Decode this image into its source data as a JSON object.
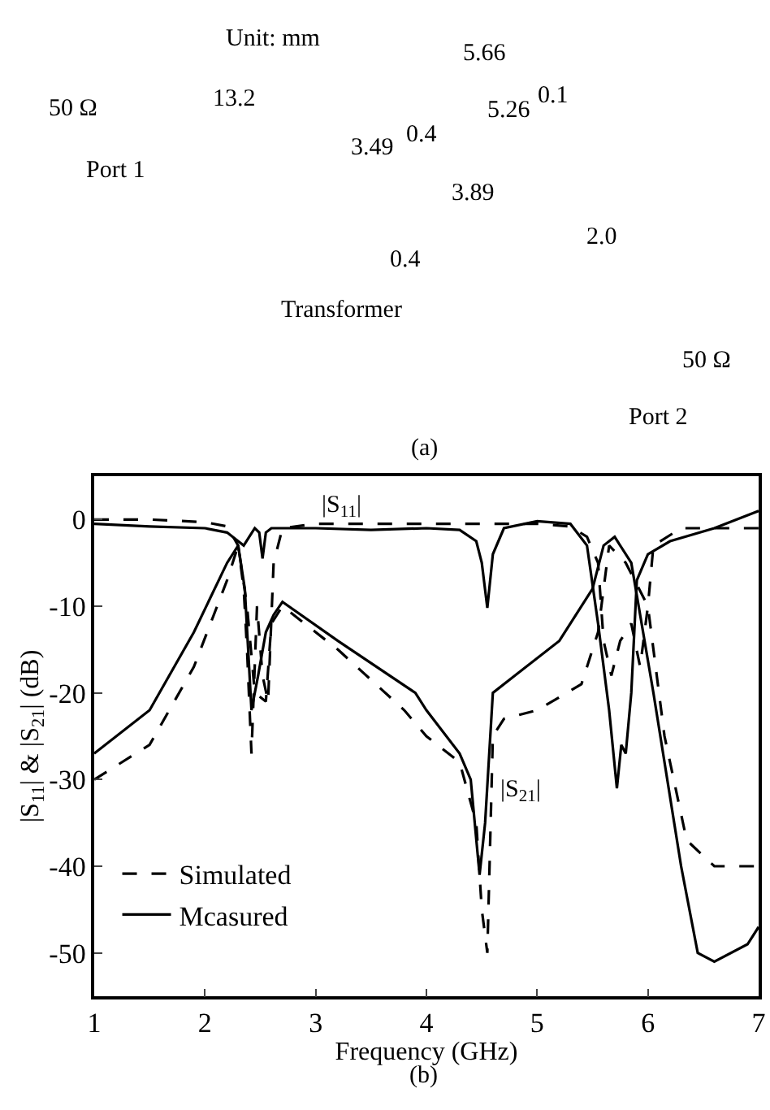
{
  "chart_data": [
    {
      "type": "other",
      "annotations": [
        "Unit: mm",
        "50 Ω",
        "13.2",
        "Port 1",
        "5.66",
        "5.26",
        "0.1",
        "3.49",
        "0.4",
        "3.89",
        "2.0",
        "0.4",
        "Transformer",
        "50 Ω",
        "Port 2",
        "(a)"
      ]
    },
    {
      "type": "line",
      "xlabel": "Frequency (GHz)",
      "ylabel": "|S$_{11}$| & |S$_{21}$| (dB)",
      "xlim": [
        1,
        7
      ],
      "xticks": [
        1,
        2,
        3,
        4,
        5,
        6,
        7
      ],
      "ylim": [
        -55,
        5
      ],
      "yticks": [
        -50,
        -40,
        -30,
        -20,
        -10,
        0
      ],
      "grid": false,
      "legend": "bottom left",
      "annotations": [
        "|S$_{11}$|",
        "|S$_{21}$|",
        "(b)"
      ],
      "series": [
        {
          "name": "Simulated",
          "color": "#000000",
          "line_style": "dashed",
          "x": [
            1,
            1.5,
            2.0,
            2.2,
            2.3,
            2.35,
            2.38,
            2.42,
            2.47,
            2.52,
            2.57,
            2.62,
            2.7,
            3.0,
            4.0,
            5.0,
            5.3,
            5.45,
            5.55,
            5.6,
            5.67,
            5.75,
            5.85,
            5.93,
            6.0,
            6.05,
            6.3,
            7.0
          ],
          "values": [
            0,
            0,
            -0.3,
            -0.8,
            -3,
            -8,
            -15,
            -27,
            -10,
            -18,
            -21,
            -5,
            -1,
            -0.5,
            -0.5,
            -0.5,
            -0.8,
            -2,
            -5,
            -14,
            -18,
            -14,
            -12,
            -17,
            -10,
            -3,
            -1,
            -1
          ]
        },
        {
          "name": "Mcasured",
          "color": "#000000",
          "line_style": "solid",
          "x": [
            1,
            1.5,
            2.0,
            2.2,
            2.3,
            2.35,
            2.4,
            2.45,
            2.49,
            2.52,
            2.55,
            2.6,
            3.0,
            3.5,
            4.0,
            4.3,
            4.45,
            4.5,
            4.55,
            4.6,
            4.7,
            5.0,
            5.3,
            5.45,
            5.55,
            5.65,
            5.72,
            5.76,
            5.8,
            5.85,
            5.9,
            6.0,
            6.2,
            6.6,
            7.0
          ],
          "values": [
            -0.5,
            -0.8,
            -1,
            -1.5,
            -2.5,
            -3,
            -2,
            -1,
            -1.5,
            -4.5,
            -1.5,
            -1,
            -1,
            -1.2,
            -1,
            -1.2,
            -2.5,
            -5,
            -10.2,
            -4,
            -1,
            -0.2,
            -0.5,
            -3,
            -12,
            -22,
            -31,
            -26,
            -27,
            -20,
            -7,
            -4,
            -2.5,
            -1,
            1
          ]
        },
        {
          "color": "#000000",
          "line_style": "dashed",
          "x": [
            1,
            1.5,
            1.9,
            2.2,
            2.3,
            2.38,
            2.45,
            2.55,
            2.6,
            2.7,
            3.2,
            3.8,
            4.0,
            4.3,
            4.45,
            4.5,
            4.55,
            4.6,
            4.7,
            5.0,
            5.4,
            5.55,
            5.65,
            5.8,
            6.0,
            6.15,
            6.35,
            6.6,
            7.0
          ],
          "values": [
            -30,
            -26,
            -17,
            -7,
            -3,
            -10,
            -20,
            -21,
            -12,
            -10,
            -15,
            -22,
            -25,
            -28,
            -35,
            -45,
            -50,
            -25,
            -23,
            -22,
            -19,
            -13,
            -3,
            -5,
            -10,
            -25,
            -37,
            -40,
            -40
          ]
        },
        {
          "color": "#000000",
          "line_style": "solid",
          "x": [
            1,
            1.5,
            1.9,
            2.2,
            2.3,
            2.36,
            2.42,
            2.48,
            2.55,
            2.62,
            2.7,
            3.2,
            3.9,
            4.0,
            4.3,
            4.4,
            4.48,
            4.53,
            4.6,
            4.8,
            5.2,
            5.5,
            5.6,
            5.7,
            5.85,
            6.05,
            6.3,
            6.45,
            6.6,
            6.9,
            7.0
          ],
          "values": [
            -27,
            -22,
            -13,
            -5,
            -3,
            -8,
            -22,
            -18,
            -13,
            -11,
            -9.5,
            -14,
            -20,
            -22,
            -27,
            -30,
            -41,
            -35,
            -20,
            -18,
            -14,
            -8,
            -3,
            -2,
            -5,
            -20,
            -40,
            -50,
            -51,
            -49,
            -47
          ]
        }
      ]
    }
  ]
}
